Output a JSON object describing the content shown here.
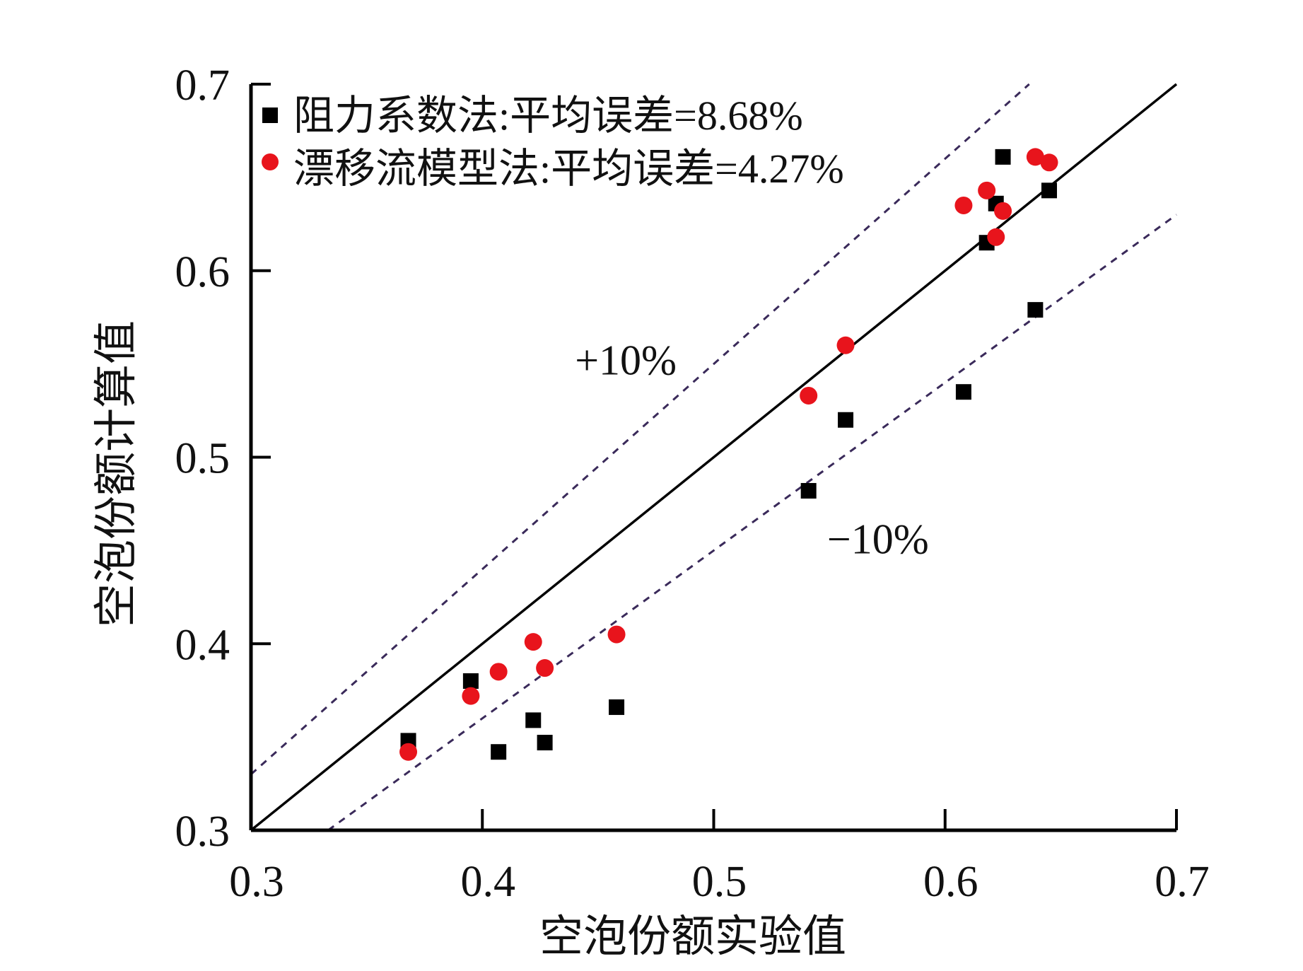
{
  "chart_data": {
    "type": "scatter",
    "title": "",
    "xlabel": "空泡份额实验值",
    "ylabel": "空泡份额计算值",
    "xlim": [
      0.3,
      0.7
    ],
    "ylim": [
      0.3,
      0.7
    ],
    "xticks": [
      "0.3",
      "0.4",
      "0.5",
      "0.6",
      "0.7"
    ],
    "yticks": [
      "0.3",
      "0.4",
      "0.5",
      "0.6",
      "0.7"
    ],
    "grid": false,
    "legend_position": "top-left",
    "series": [
      {
        "name": "阻力系数法:平均误差=8.68%",
        "marker": "square",
        "color": "#000000",
        "points": [
          [
            0.368,
            0.348
          ],
          [
            0.395,
            0.38
          ],
          [
            0.407,
            0.342
          ],
          [
            0.422,
            0.359
          ],
          [
            0.427,
            0.347
          ],
          [
            0.458,
            0.366
          ],
          [
            0.541,
            0.482
          ],
          [
            0.557,
            0.52
          ],
          [
            0.608,
            0.535
          ],
          [
            0.618,
            0.615
          ],
          [
            0.622,
            0.636
          ],
          [
            0.625,
            0.661
          ],
          [
            0.645,
            0.643
          ],
          [
            0.639,
            0.579
          ]
        ]
      },
      {
        "name": "漂移流模型法:平均误差=4.27%",
        "marker": "circle",
        "color": "#e8141c",
        "points": [
          [
            0.368,
            0.342
          ],
          [
            0.395,
            0.372
          ],
          [
            0.407,
            0.385
          ],
          [
            0.422,
            0.401
          ],
          [
            0.427,
            0.387
          ],
          [
            0.458,
            0.405
          ],
          [
            0.541,
            0.533
          ],
          [
            0.557,
            0.56
          ],
          [
            0.608,
            0.635
          ],
          [
            0.618,
            0.643
          ],
          [
            0.622,
            0.618
          ],
          [
            0.625,
            0.632
          ],
          [
            0.639,
            0.661
          ],
          [
            0.645,
            0.658
          ]
        ]
      }
    ],
    "reference_lines": [
      {
        "name": "y=x",
        "slope": 1.0,
        "style": "solid"
      },
      {
        "name": "+10%",
        "slope": 1.1,
        "style": "dashed",
        "label": "+10%",
        "label_at": [
          0.462,
          0.552
        ]
      },
      {
        "name": "-10%",
        "slope": 0.9,
        "style": "dashed",
        "label": "−10%",
        "label_at": [
          0.571,
          0.456
        ]
      }
    ]
  }
}
